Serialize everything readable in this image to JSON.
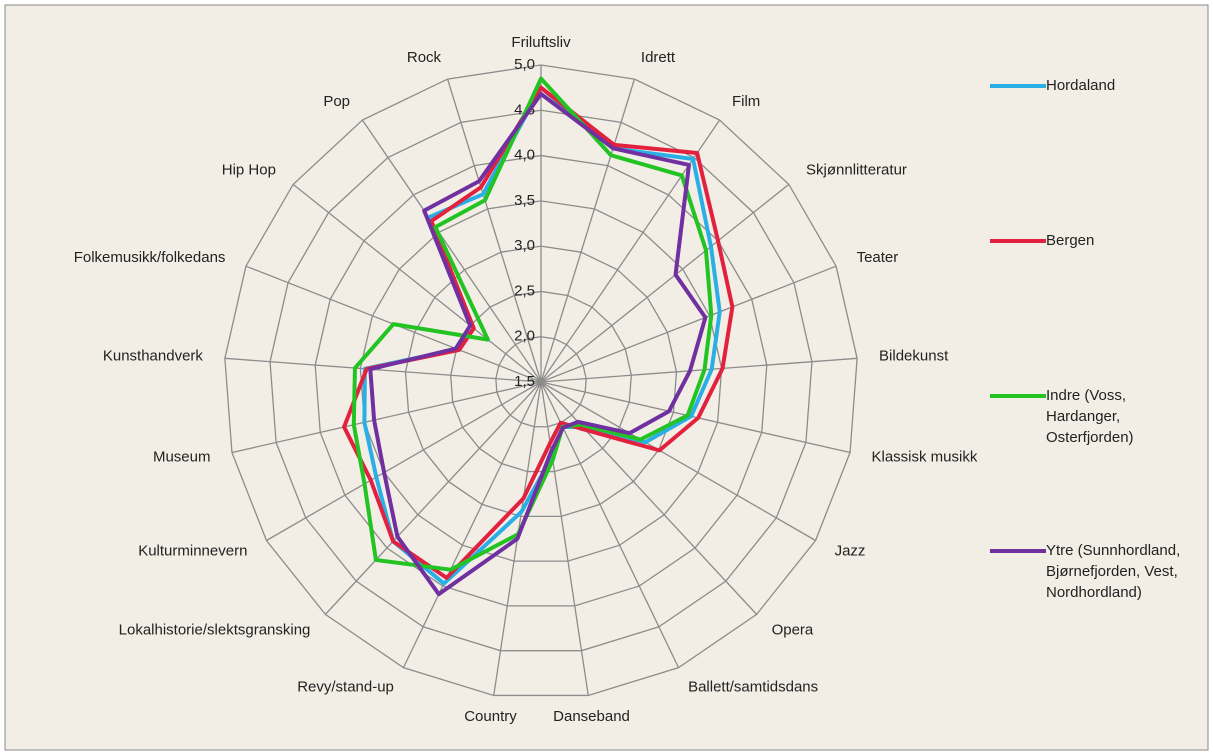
{
  "chart_data": {
    "type": "radar",
    "categories": [
      "Friluftsliv",
      "Idrett",
      "Film",
      "Skjønnlitteratur",
      "Teater",
      "Bildekunst",
      "Klassisk musikk",
      "Jazz",
      "Opera",
      "Ballett/samtidsdans",
      "Danseband",
      "Country",
      "Revy/stand-up",
      "Lokalhistorie/slektsgransking",
      "Kulturminnevern",
      "Museum",
      "Kunsthandverk",
      "Folkemusikk/folkedans",
      "Hip Hop",
      "Pop",
      "Rock"
    ],
    "series": [
      {
        "name": "Hordaland",
        "color": "#2aaee6",
        "values": [
          4.75,
          4.2,
          4.48,
          3.9,
          3.62,
          3.39,
          3.2,
          2.83,
          2.18,
          2.05,
          2.33,
          2.95,
          3.97,
          3.9,
          3.6,
          3.5,
          3.45,
          2.49,
          2.45,
          3.7,
          3.67
        ]
      },
      {
        "name": "Bergen",
        "color": "#e2213f",
        "values": [
          4.75,
          4.24,
          4.56,
          4.0,
          3.77,
          3.51,
          3.28,
          3.01,
          2.22,
          2.0,
          2.18,
          2.8,
          3.9,
          3.9,
          3.67,
          3.73,
          3.43,
          2.47,
          2.45,
          3.65,
          3.75
        ]
      },
      {
        "name": "Indre (Voss, Hardanger, Osterfjorden)",
        "color": "#22c322",
        "values": [
          4.85,
          4.12,
          4.26,
          3.83,
          3.52,
          3.31,
          3.16,
          2.77,
          2.14,
          2.05,
          2.37,
          3.2,
          3.8,
          4.18,
          3.75,
          3.62,
          3.56,
          3.25,
          2.25,
          3.57,
          3.6
        ]
      },
      {
        "name": "Ytre (Sunnhordland, Bjørnefjorden, Vest, Nordhordland)",
        "color": "#7030a0",
        "values": [
          4.68,
          4.2,
          4.4,
          3.4,
          3.45,
          3.15,
          2.95,
          2.63,
          2.1,
          2.06,
          2.27,
          3.25,
          4.1,
          3.83,
          3.5,
          3.39,
          3.39,
          2.51,
          2.5,
          3.79,
          3.82
        ]
      }
    ],
    "rlim": [
      1.5,
      5.0
    ],
    "rticks": [
      {
        "value": 1.5,
        "label": "1,5"
      },
      {
        "value": 2.0,
        "label": "2,0"
      },
      {
        "value": 2.5,
        "label": "2,5"
      },
      {
        "value": 3.0,
        "label": "3,0"
      },
      {
        "value": 3.5,
        "label": "3,5"
      },
      {
        "value": 4.0,
        "label": "4,0"
      },
      {
        "value": 4.5,
        "label": "4,5"
      },
      {
        "value": 5.0,
        "label": "5,0"
      }
    ],
    "grid": true,
    "legend": "right"
  }
}
